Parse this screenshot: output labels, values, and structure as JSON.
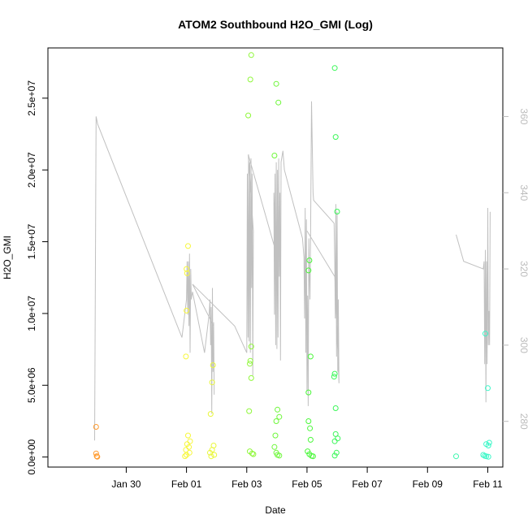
{
  "chart_data": {
    "type": "scatter",
    "title": "ATOM2 Southbound H2O_GMI (Log)",
    "xlabel": "Date",
    "ylabel": "H2O_GMI",
    "x_unit": "days since Jan 30",
    "xlim": [
      -2.6,
      12.5
    ],
    "ylim": [
      -700000,
      28500000
    ],
    "y2lim": [
      268,
      378
    ],
    "x_ticks": [
      {
        "value": 0,
        "label": "Jan 30"
      },
      {
        "value": 2,
        "label": "Feb 01"
      },
      {
        "value": 4,
        "label": "Feb 03"
      },
      {
        "value": 6,
        "label": "Feb 05"
      },
      {
        "value": 8,
        "label": "Feb 07"
      },
      {
        "value": 10,
        "label": "Feb 09"
      },
      {
        "value": 12,
        "label": "Feb 11"
      }
    ],
    "y_ticks": [
      {
        "value": 0,
        "label": "0.0e+00"
      },
      {
        "value": 5000000,
        "label": "5.0e+06"
      },
      {
        "value": 10000000,
        "label": "1.0e+07"
      },
      {
        "value": 15000000,
        "label": "1.5e+07"
      },
      {
        "value": 20000000,
        "label": "2.0e+07"
      },
      {
        "value": 25000000,
        "label": "2.5e+07"
      }
    ],
    "y2_ticks": [
      {
        "value": 280,
        "label": "280"
      },
      {
        "value": 300,
        "label": "300"
      },
      {
        "value": 320,
        "label": "320"
      },
      {
        "value": 340,
        "label": "340"
      },
      {
        "value": 360,
        "label": "360"
      }
    ],
    "points": [
      {
        "x": -1.0,
        "y": 2100000,
        "color": "#ff9a2e"
      },
      {
        "x": -1.0,
        "y": 250000,
        "color": "#ff9a2e"
      },
      {
        "x": -0.98,
        "y": 60000,
        "color": "#ff9a2e"
      },
      {
        "x": -0.96,
        "y": 20000,
        "color": "#ff9a2e"
      },
      {
        "x": 2.05,
        "y": 14700000,
        "color": "#f7f73a"
      },
      {
        "x": 2.0,
        "y": 13100000,
        "color": "#f7f73a"
      },
      {
        "x": 2.02,
        "y": 12800000,
        "color": "#f7f73a"
      },
      {
        "x": 2.0,
        "y": 10200000,
        "color": "#f7f73a"
      },
      {
        "x": 1.98,
        "y": 7000000,
        "color": "#f7f73a"
      },
      {
        "x": 2.05,
        "y": 1500000,
        "color": "#f7f73a"
      },
      {
        "x": 2.12,
        "y": 1100000,
        "color": "#f7f73a"
      },
      {
        "x": 2.02,
        "y": 900000,
        "color": "#f7f73a"
      },
      {
        "x": 2.08,
        "y": 700000,
        "color": "#f7f73a"
      },
      {
        "x": 1.98,
        "y": 500000,
        "color": "#f7f73a"
      },
      {
        "x": 2.1,
        "y": 300000,
        "color": "#f7f73a"
      },
      {
        "x": 2.0,
        "y": 150000,
        "color": "#f7f73a"
      },
      {
        "x": 1.95,
        "y": 60000,
        "color": "#f7f73a"
      },
      {
        "x": 2.88,
        "y": 6400000,
        "color": "#e9f73a"
      },
      {
        "x": 2.85,
        "y": 5200000,
        "color": "#e9f73a"
      },
      {
        "x": 2.8,
        "y": 3000000,
        "color": "#e9f73a"
      },
      {
        "x": 2.9,
        "y": 800000,
        "color": "#e9f73a"
      },
      {
        "x": 2.85,
        "y": 500000,
        "color": "#e9f73a"
      },
      {
        "x": 2.78,
        "y": 300000,
        "color": "#e9f73a"
      },
      {
        "x": 2.92,
        "y": 150000,
        "color": "#e9f73a"
      },
      {
        "x": 2.82,
        "y": 50000,
        "color": "#e9f73a"
      },
      {
        "x": 4.15,
        "y": 28000000,
        "color": "#8ff73a"
      },
      {
        "x": 4.12,
        "y": 26300000,
        "color": "#8ff73a"
      },
      {
        "x": 4.05,
        "y": 23800000,
        "color": "#8ff73a"
      },
      {
        "x": 4.15,
        "y": 7700000,
        "color": "#8ff73a"
      },
      {
        "x": 4.12,
        "y": 6700000,
        "color": "#8ff73a"
      },
      {
        "x": 4.1,
        "y": 6500000,
        "color": "#8ff73a"
      },
      {
        "x": 4.15,
        "y": 5500000,
        "color": "#8ff73a"
      },
      {
        "x": 4.08,
        "y": 3200000,
        "color": "#8ff73a"
      },
      {
        "x": 4.1,
        "y": 400000,
        "color": "#8ff73a"
      },
      {
        "x": 4.18,
        "y": 250000,
        "color": "#8ff73a"
      },
      {
        "x": 4.22,
        "y": 200000,
        "color": "#8ff73a"
      },
      {
        "x": 4.98,
        "y": 26000000,
        "color": "#6ef73a"
      },
      {
        "x": 5.05,
        "y": 24700000,
        "color": "#6ef73a"
      },
      {
        "x": 4.92,
        "y": 21000000,
        "color": "#6ef73a"
      },
      {
        "x": 5.02,
        "y": 3300000,
        "color": "#6ef73a"
      },
      {
        "x": 5.08,
        "y": 2800000,
        "color": "#6ef73a"
      },
      {
        "x": 4.98,
        "y": 2500000,
        "color": "#6ef73a"
      },
      {
        "x": 4.95,
        "y": 1500000,
        "color": "#6ef73a"
      },
      {
        "x": 4.92,
        "y": 700000,
        "color": "#6ef73a"
      },
      {
        "x": 4.98,
        "y": 300000,
        "color": "#6ef73a"
      },
      {
        "x": 5.02,
        "y": 150000,
        "color": "#6ef73a"
      },
      {
        "x": 5.08,
        "y": 100000,
        "color": "#6ef73a"
      },
      {
        "x": 6.08,
        "y": 13700000,
        "color": "#4af73a"
      },
      {
        "x": 6.05,
        "y": 13000000,
        "color": "#4af73a"
      },
      {
        "x": 6.12,
        "y": 7000000,
        "color": "#4af73a"
      },
      {
        "x": 6.05,
        "y": 4500000,
        "color": "#4af73a"
      },
      {
        "x": 6.05,
        "y": 2500000,
        "color": "#4af73a"
      },
      {
        "x": 6.1,
        "y": 2000000,
        "color": "#4af73a"
      },
      {
        "x": 6.12,
        "y": 1200000,
        "color": "#4af73a"
      },
      {
        "x": 6.02,
        "y": 400000,
        "color": "#4af73a"
      },
      {
        "x": 6.08,
        "y": 200000,
        "color": "#4af73a"
      },
      {
        "x": 6.15,
        "y": 80000,
        "color": "#4af73a"
      },
      {
        "x": 6.2,
        "y": 50000,
        "color": "#4af73a"
      },
      {
        "x": 6.92,
        "y": 27100000,
        "color": "#3af758"
      },
      {
        "x": 6.95,
        "y": 22300000,
        "color": "#3af758"
      },
      {
        "x": 7.0,
        "y": 17100000,
        "color": "#3af758"
      },
      {
        "x": 6.92,
        "y": 5800000,
        "color": "#3af758"
      },
      {
        "x": 6.9,
        "y": 5600000,
        "color": "#3af758"
      },
      {
        "x": 6.95,
        "y": 3400000,
        "color": "#3af758"
      },
      {
        "x": 6.95,
        "y": 1600000,
        "color": "#3af758"
      },
      {
        "x": 7.02,
        "y": 1300000,
        "color": "#3af758"
      },
      {
        "x": 6.92,
        "y": 1100000,
        "color": "#3af758"
      },
      {
        "x": 6.98,
        "y": 300000,
        "color": "#3af758"
      },
      {
        "x": 6.92,
        "y": 100000,
        "color": "#3af758"
      },
      {
        "x": 10.95,
        "y": 50000,
        "color": "#3af7ad"
      },
      {
        "x": 11.92,
        "y": 8600000,
        "color": "#3af7c7"
      },
      {
        "x": 12.0,
        "y": 4800000,
        "color": "#3af7c7"
      },
      {
        "x": 11.95,
        "y": 900000,
        "color": "#3af7c7"
      },
      {
        "x": 12.05,
        "y": 1000000,
        "color": "#3af7c7"
      },
      {
        "x": 12.02,
        "y": 800000,
        "color": "#3af7c7"
      },
      {
        "x": 11.85,
        "y": 150000,
        "color": "#3af7c7"
      },
      {
        "x": 11.9,
        "y": 80000,
        "color": "#3af7c7"
      },
      {
        "x": 11.95,
        "y": 50000,
        "color": "#3af7c7"
      },
      {
        "x": 12.02,
        "y": 20000,
        "color": "#3af7c7"
      }
    ],
    "secondary_line": {
      "name": "secondary axis series",
      "color": "#c0c0c0",
      "x": [
        -1.05,
        -1.0,
        -0.95,
        1.85,
        2.0,
        2.02,
        2.04,
        2.06,
        2.08,
        2.1,
        2.12,
        2.14,
        2.16,
        2.2,
        2.6,
        2.75,
        2.78,
        2.8,
        2.82,
        2.84,
        2.86,
        2.88,
        2.9,
        2.92,
        2.9,
        2.2,
        3.6,
        4.0,
        4.02,
        4.04,
        4.06,
        4.08,
        4.1,
        4.12,
        4.14,
        4.16,
        4.18,
        4.2,
        4.22,
        4.05,
        4.95,
        4.9,
        4.92,
        4.94,
        4.96,
        4.98,
        5.0,
        5.02,
        5.04,
        5.06,
        5.08,
        5.1,
        5.12,
        5.14,
        5.2,
        5.25,
        5.85,
        5.9,
        5.92,
        5.94,
        5.96,
        5.98,
        6.0,
        6.02,
        6.04,
        6.06,
        6.08,
        6.1,
        6.12,
        6.15,
        6.2,
        6.22,
        6.9,
        6.92,
        6.94,
        6.96,
        6.98,
        7.0,
        7.02,
        7.04,
        7.06,
        6.92,
        6.0
      ],
      "y": [
        275,
        360,
        358,
        302,
        312,
        322,
        308,
        322,
        305,
        324,
        298,
        320,
        312,
        314,
        298,
        308,
        312,
        300,
        310,
        282,
        315,
        293,
        306,
        287,
        305,
        316,
        305,
        298,
        345,
        302,
        350,
        301,
        348,
        298,
        349,
        315,
        345,
        292,
        330,
        350,
        325,
        340,
        308,
        345,
        300,
        348,
        299,
        346,
        302,
        349,
        318,
        340,
        296,
        348,
        351,
        346,
        328,
        323,
        307,
        336,
        298,
        333,
        288,
        313,
        284,
        328,
        318,
        312,
        330,
        364,
        340,
        338,
        332,
        322,
        307,
        337,
        297,
        335,
        293,
        312,
        290,
        318,
        330
      ],
      "x2": [
        10.95,
        11.2,
        11.85,
        11.88,
        11.9,
        11.92,
        11.94,
        11.96,
        11.98,
        12.0,
        12.02,
        12.04,
        12.06,
        12.08
      ],
      "y2": [
        329,
        322,
        320,
        322,
        295,
        325,
        285,
        322,
        295,
        336,
        300,
        309,
        300,
        335
      ]
    }
  }
}
